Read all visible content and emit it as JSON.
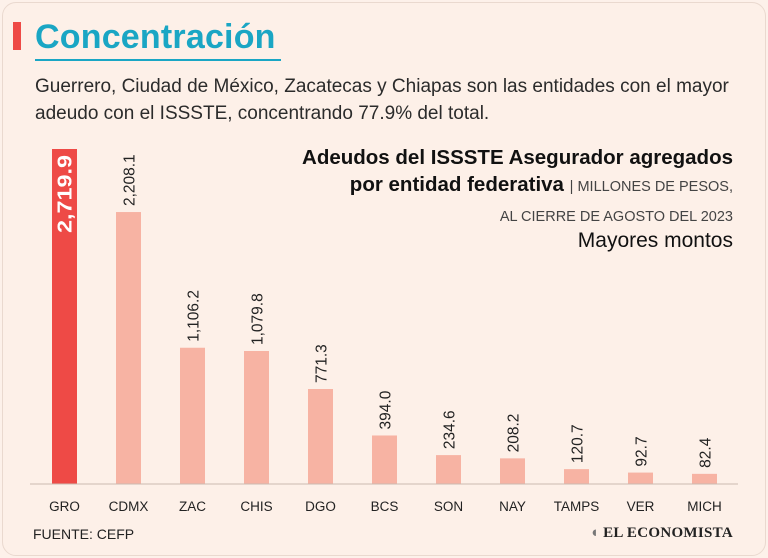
{
  "header": {
    "title": "Concentración",
    "intro": "Guerrero, Ciudad de México, Zacatecas y Chiapas son las entidades con el mayor adeudo con el ISSSTE, concentrando 77.9% del total."
  },
  "chart_data": {
    "type": "bar",
    "title_line1": "Adeudos del ISSSTE Asegurador agregados",
    "title_line2": "por entidad federativa",
    "units": "| MILLONES DE PESOS,",
    "units_line2": "AL CIERRE DE AGOSTO DEL 2023",
    "subtitle": "Mayores montos",
    "categories": [
      "GRO",
      "CDMX",
      "ZAC",
      "CHIS",
      "DGO",
      "BCS",
      "SON",
      "NAY",
      "TAMPS",
      "VER",
      "MICH"
    ],
    "values": [
      2719.9,
      2208.1,
      1106.2,
      1079.8,
      771.3,
      394.0,
      234.6,
      208.2,
      120.7,
      92.7,
      82.4
    ],
    "labels": [
      "2,719.9",
      "2,208.1",
      "1,106.2",
      "1,079.8",
      "771.3",
      "394.0",
      "234.6",
      "208.2",
      "120.7",
      "92.7",
      "82.4"
    ],
    "ylim": [
      0,
      2719.9
    ],
    "highlight_color": "#ee4a46",
    "bar_color": "#f7b3a3",
    "xlabel": "",
    "ylabel": ""
  },
  "footer": {
    "source": "FUENTE: CEFP",
    "brand": "EL ECONOMISTA",
    "brand_icon": "economista-logo-icon"
  }
}
